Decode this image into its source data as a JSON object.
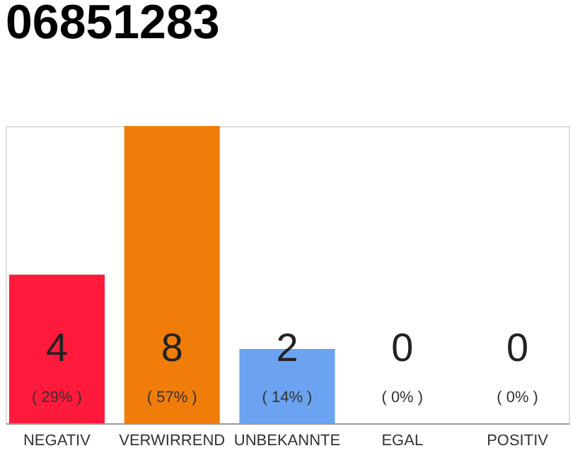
{
  "chart_data": {
    "type": "bar",
    "title": "06851283",
    "categories": [
      "NEGATIV",
      "VERWIRREND",
      "UNBEKANNTE",
      "EGAL",
      "POSITIV"
    ],
    "values": [
      4,
      8,
      2,
      0,
      0
    ],
    "colors": [
      "#ff1a3c",
      "#f07d0a",
      "#6ba3f0",
      "#cccccc",
      "#cccccc"
    ],
    "ylim": [
      0,
      8
    ],
    "data_labels": true,
    "grid": false,
    "tick_labels": "x",
    "annotations": [
      "( 29% )",
      "( 57% )",
      "( 14% )",
      "( 0% )",
      "( 0% )"
    ]
  }
}
